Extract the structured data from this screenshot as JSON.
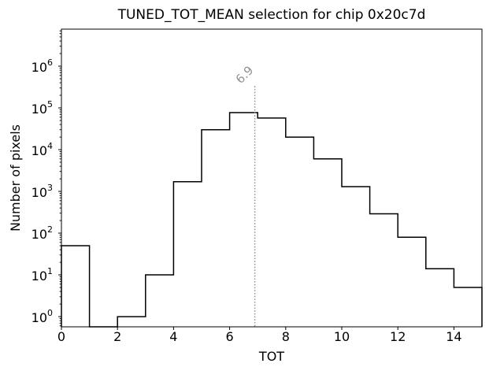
{
  "figure": {
    "background": "#ffffff"
  },
  "chart_data": {
    "type": "bar",
    "subtype": "step-histogram",
    "title": "TUNED_TOT_MEAN selection for chip 0x20c7d",
    "xlabel": "TOT",
    "ylabel": "Number of pixels",
    "yscale": "log",
    "grid": false,
    "legend": null,
    "xlim": [
      0,
      15
    ],
    "ylim": [
      0.57,
      7700000
    ],
    "bin_edges": [
      0,
      1,
      2,
      3,
      4,
      5,
      6,
      7,
      8,
      9,
      10,
      11,
      12,
      13,
      14,
      15
    ],
    "counts": [
      50,
      0,
      1,
      10,
      1700,
      30000,
      77000,
      57000,
      20000,
      6000,
      1300,
      290,
      80,
      14,
      5
    ],
    "xticks": [
      "0",
      "2",
      "4",
      "6",
      "8",
      "10",
      "12",
      "14"
    ],
    "xtick_values": [
      0,
      2,
      4,
      6,
      8,
      10,
      12,
      14
    ],
    "ytick_exponents": [
      0,
      1,
      2,
      3,
      4,
      5,
      6
    ],
    "line_color": "#000000",
    "axis_color": "#000000",
    "vline": {
      "x": 6.9,
      "label": "6.9",
      "color": "#929292",
      "style": "dotted"
    }
  }
}
